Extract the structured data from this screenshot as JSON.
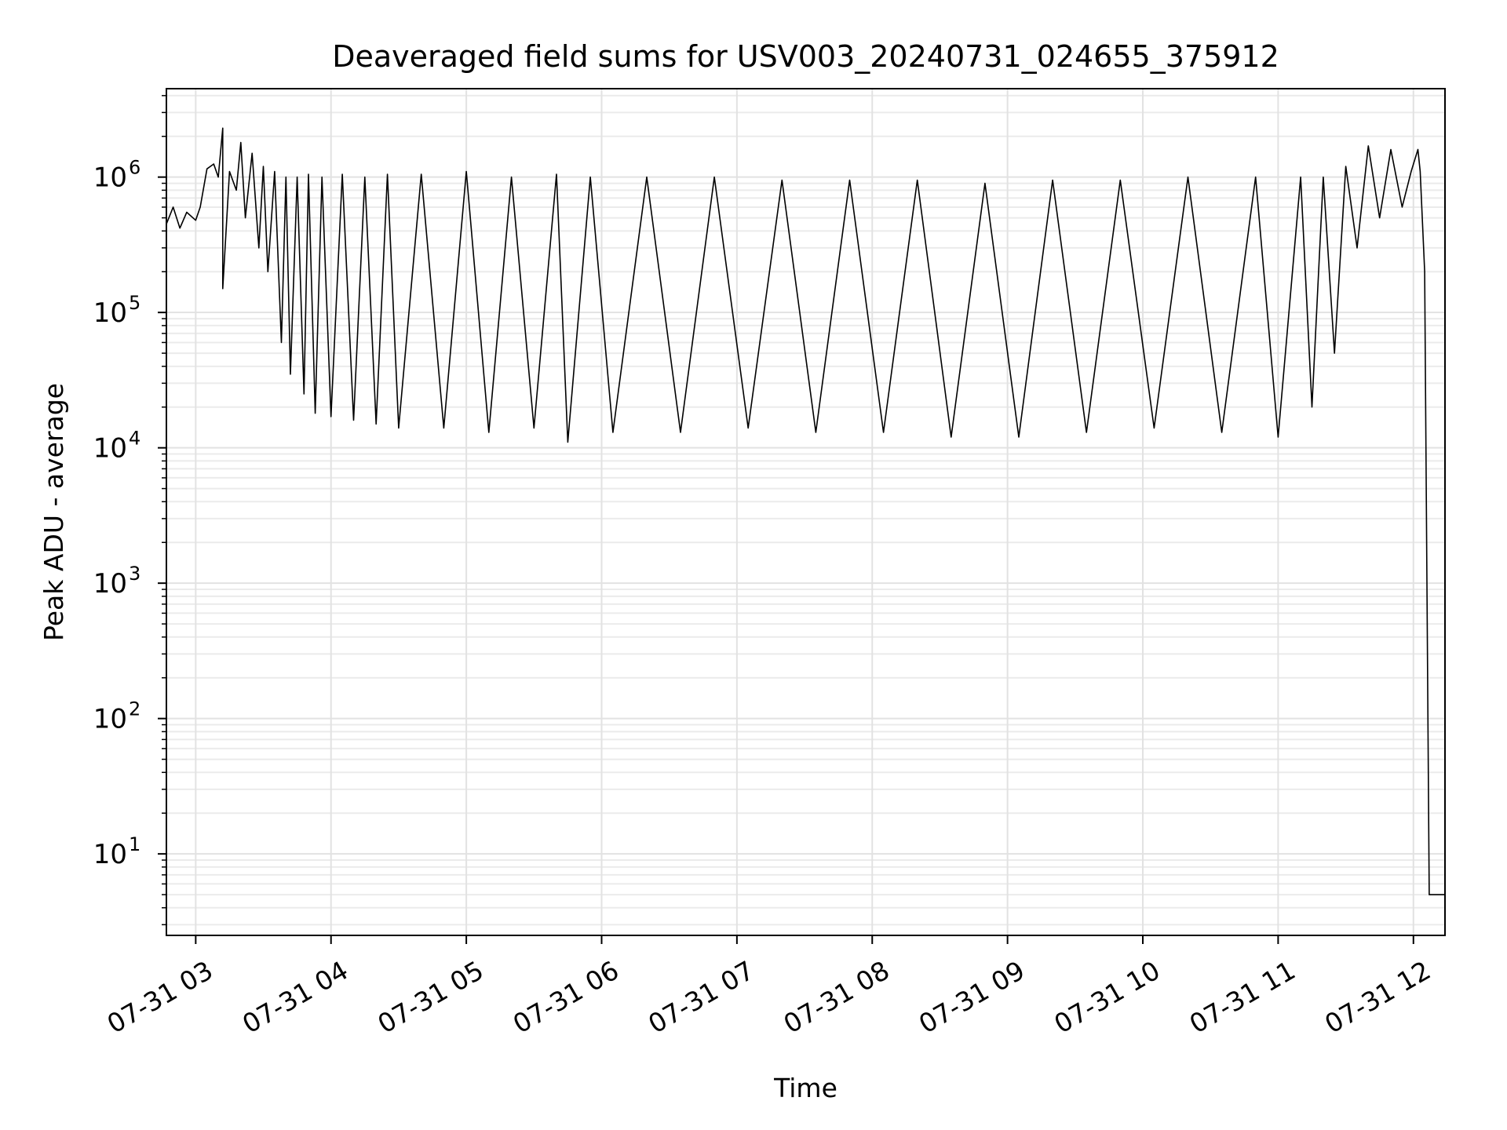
{
  "chart_data": {
    "type": "line",
    "title": "Deaveraged field sums for USV003_20240731_024655_375912",
    "xlabel": "Time",
    "ylabel": "Peak ADU - average",
    "yscale": "log",
    "grid": true,
    "xlim": [
      "2024-07-31T02:47",
      "2024-07-31T12:14"
    ],
    "ylim": [
      2.5,
      4500000
    ],
    "x_ticks": [
      {
        "value": "2024-07-31T03:00",
        "label": "07-31 03"
      },
      {
        "value": "2024-07-31T04:00",
        "label": "07-31 04"
      },
      {
        "value": "2024-07-31T05:00",
        "label": "07-31 05"
      },
      {
        "value": "2024-07-31T06:00",
        "label": "07-31 06"
      },
      {
        "value": "2024-07-31T07:00",
        "label": "07-31 07"
      },
      {
        "value": "2024-07-31T08:00",
        "label": "07-31 08"
      },
      {
        "value": "2024-07-31T09:00",
        "label": "07-31 09"
      },
      {
        "value": "2024-07-31T10:00",
        "label": "07-31 10"
      },
      {
        "value": "2024-07-31T11:00",
        "label": "07-31 11"
      },
      {
        "value": "2024-07-31T12:00",
        "label": "07-31 12"
      }
    ],
    "y_ticks": [
      {
        "value": 10,
        "base": "10",
        "exp": "1"
      },
      {
        "value": 100,
        "base": "10",
        "exp": "2"
      },
      {
        "value": 1000,
        "base": "10",
        "exp": "3"
      },
      {
        "value": 10000,
        "base": "10",
        "exp": "4"
      },
      {
        "value": 100000,
        "base": "10",
        "exp": "5"
      },
      {
        "value": 1000000,
        "base": "10",
        "exp": "6"
      }
    ],
    "series": [
      {
        "color": "#000000",
        "points": [
          [
            "2024-07-31T02:47",
            450000
          ],
          [
            "2024-07-31T02:50",
            600000
          ],
          [
            "2024-07-31T02:53",
            420000
          ],
          [
            "2024-07-31T02:56",
            550000
          ],
          [
            "2024-07-31T03:00",
            480000
          ],
          [
            "2024-07-31T03:02",
            600000
          ],
          [
            "2024-07-31T03:05",
            1150000
          ],
          [
            "2024-07-31T03:08",
            1250000
          ],
          [
            "2024-07-31T03:10",
            1000000
          ],
          [
            "2024-07-31T03:12",
            2300000
          ],
          [
            "2024-07-31T03:12",
            150000
          ],
          [
            "2024-07-31T03:15",
            1100000
          ],
          [
            "2024-07-31T03:18",
            800000
          ],
          [
            "2024-07-31T03:20",
            1800000
          ],
          [
            "2024-07-31T03:22",
            500000
          ],
          [
            "2024-07-31T03:25",
            1500000
          ],
          [
            "2024-07-31T03:28",
            300000
          ],
          [
            "2024-07-31T03:30",
            1200000
          ],
          [
            "2024-07-31T03:32",
            200000
          ],
          [
            "2024-07-31T03:35",
            1100000
          ],
          [
            "2024-07-31T03:38",
            60000
          ],
          [
            "2024-07-31T03:40",
            1000000
          ],
          [
            "2024-07-31T03:42",
            35000
          ],
          [
            "2024-07-31T03:45",
            1000000
          ],
          [
            "2024-07-31T03:48",
            25000
          ],
          [
            "2024-07-31T03:50",
            1050000
          ],
          [
            "2024-07-31T03:53",
            18000
          ],
          [
            "2024-07-31T03:56",
            1000000
          ],
          [
            "2024-07-31T04:00",
            17000
          ],
          [
            "2024-07-31T04:05",
            1050000
          ],
          [
            "2024-07-31T04:10",
            16000
          ],
          [
            "2024-07-31T04:15",
            1000000
          ],
          [
            "2024-07-31T04:20",
            15000
          ],
          [
            "2024-07-31T04:25",
            1050000
          ],
          [
            "2024-07-31T04:30",
            14000
          ],
          [
            "2024-07-31T04:40",
            1050000
          ],
          [
            "2024-07-31T04:50",
            14000
          ],
          [
            "2024-07-31T05:00",
            1100000
          ],
          [
            "2024-07-31T05:10",
            13000
          ],
          [
            "2024-07-31T05:20",
            1000000
          ],
          [
            "2024-07-31T05:30",
            14000
          ],
          [
            "2024-07-31T05:40",
            1050000
          ],
          [
            "2024-07-31T05:45",
            11000
          ],
          [
            "2024-07-31T05:55",
            1000000
          ],
          [
            "2024-07-31T06:05",
            13000
          ],
          [
            "2024-07-31T06:20",
            1000000
          ],
          [
            "2024-07-31T06:35",
            13000
          ],
          [
            "2024-07-31T06:50",
            1000000
          ],
          [
            "2024-07-31T07:05",
            14000
          ],
          [
            "2024-07-31T07:20",
            950000
          ],
          [
            "2024-07-31T07:35",
            13000
          ],
          [
            "2024-07-31T07:50",
            950000
          ],
          [
            "2024-07-31T08:05",
            13000
          ],
          [
            "2024-07-31T08:20",
            950000
          ],
          [
            "2024-07-31T08:35",
            12000
          ],
          [
            "2024-07-31T08:50",
            900000
          ],
          [
            "2024-07-31T09:05",
            12000
          ],
          [
            "2024-07-31T09:20",
            950000
          ],
          [
            "2024-07-31T09:35",
            13000
          ],
          [
            "2024-07-31T09:50",
            950000
          ],
          [
            "2024-07-31T10:05",
            14000
          ],
          [
            "2024-07-31T10:20",
            1000000
          ],
          [
            "2024-07-31T10:35",
            13000
          ],
          [
            "2024-07-31T10:50",
            1000000
          ],
          [
            "2024-07-31T11:00",
            12000
          ],
          [
            "2024-07-31T11:10",
            1000000
          ],
          [
            "2024-07-31T11:15",
            20000
          ],
          [
            "2024-07-31T11:20",
            1000000
          ],
          [
            "2024-07-31T11:25",
            50000
          ],
          [
            "2024-07-31T11:30",
            1200000
          ],
          [
            "2024-07-31T11:35",
            300000
          ],
          [
            "2024-07-31T11:40",
            1700000
          ],
          [
            "2024-07-31T11:45",
            500000
          ],
          [
            "2024-07-31T11:50",
            1600000
          ],
          [
            "2024-07-31T11:55",
            600000
          ],
          [
            "2024-07-31T11:59",
            1100000
          ],
          [
            "2024-07-31T12:02",
            1600000
          ],
          [
            "2024-07-31T12:03",
            1100000
          ],
          [
            "2024-07-31T12:05",
            200000
          ],
          [
            "2024-07-31T12:07",
            5
          ],
          [
            "2024-07-31T12:14",
            5
          ]
        ]
      }
    ]
  }
}
